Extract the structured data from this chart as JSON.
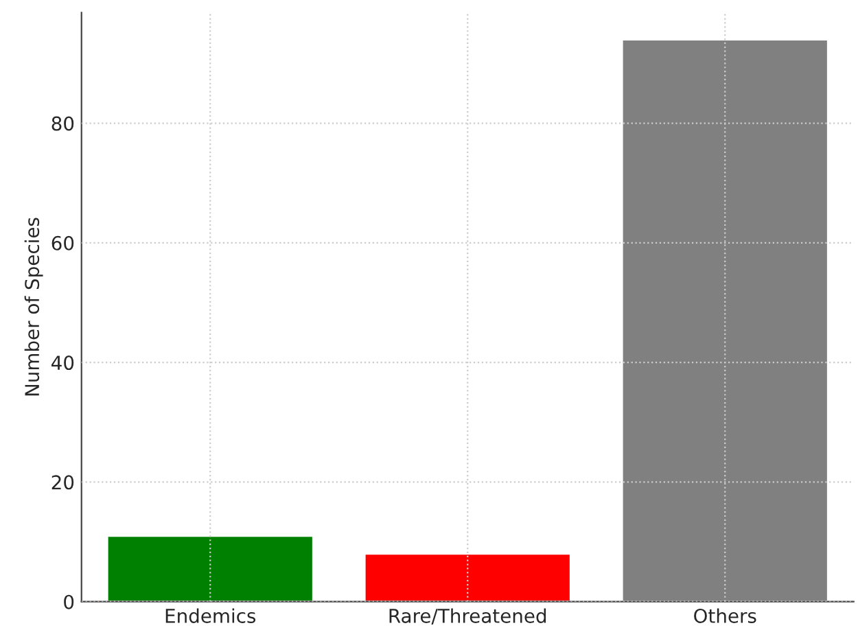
{
  "chart_data": {
    "type": "bar",
    "ylabel": "Number of Species",
    "categories": [
      "Endemics",
      "Rare/Threatened",
      "Others"
    ],
    "values": [
      11,
      8,
      94
    ],
    "colors": [
      "#008000",
      "#ff0000",
      "#808080"
    ],
    "ylim": [
      0,
      98.5
    ],
    "yticks": [
      0,
      20,
      40,
      60,
      80
    ],
    "grid": true
  }
}
